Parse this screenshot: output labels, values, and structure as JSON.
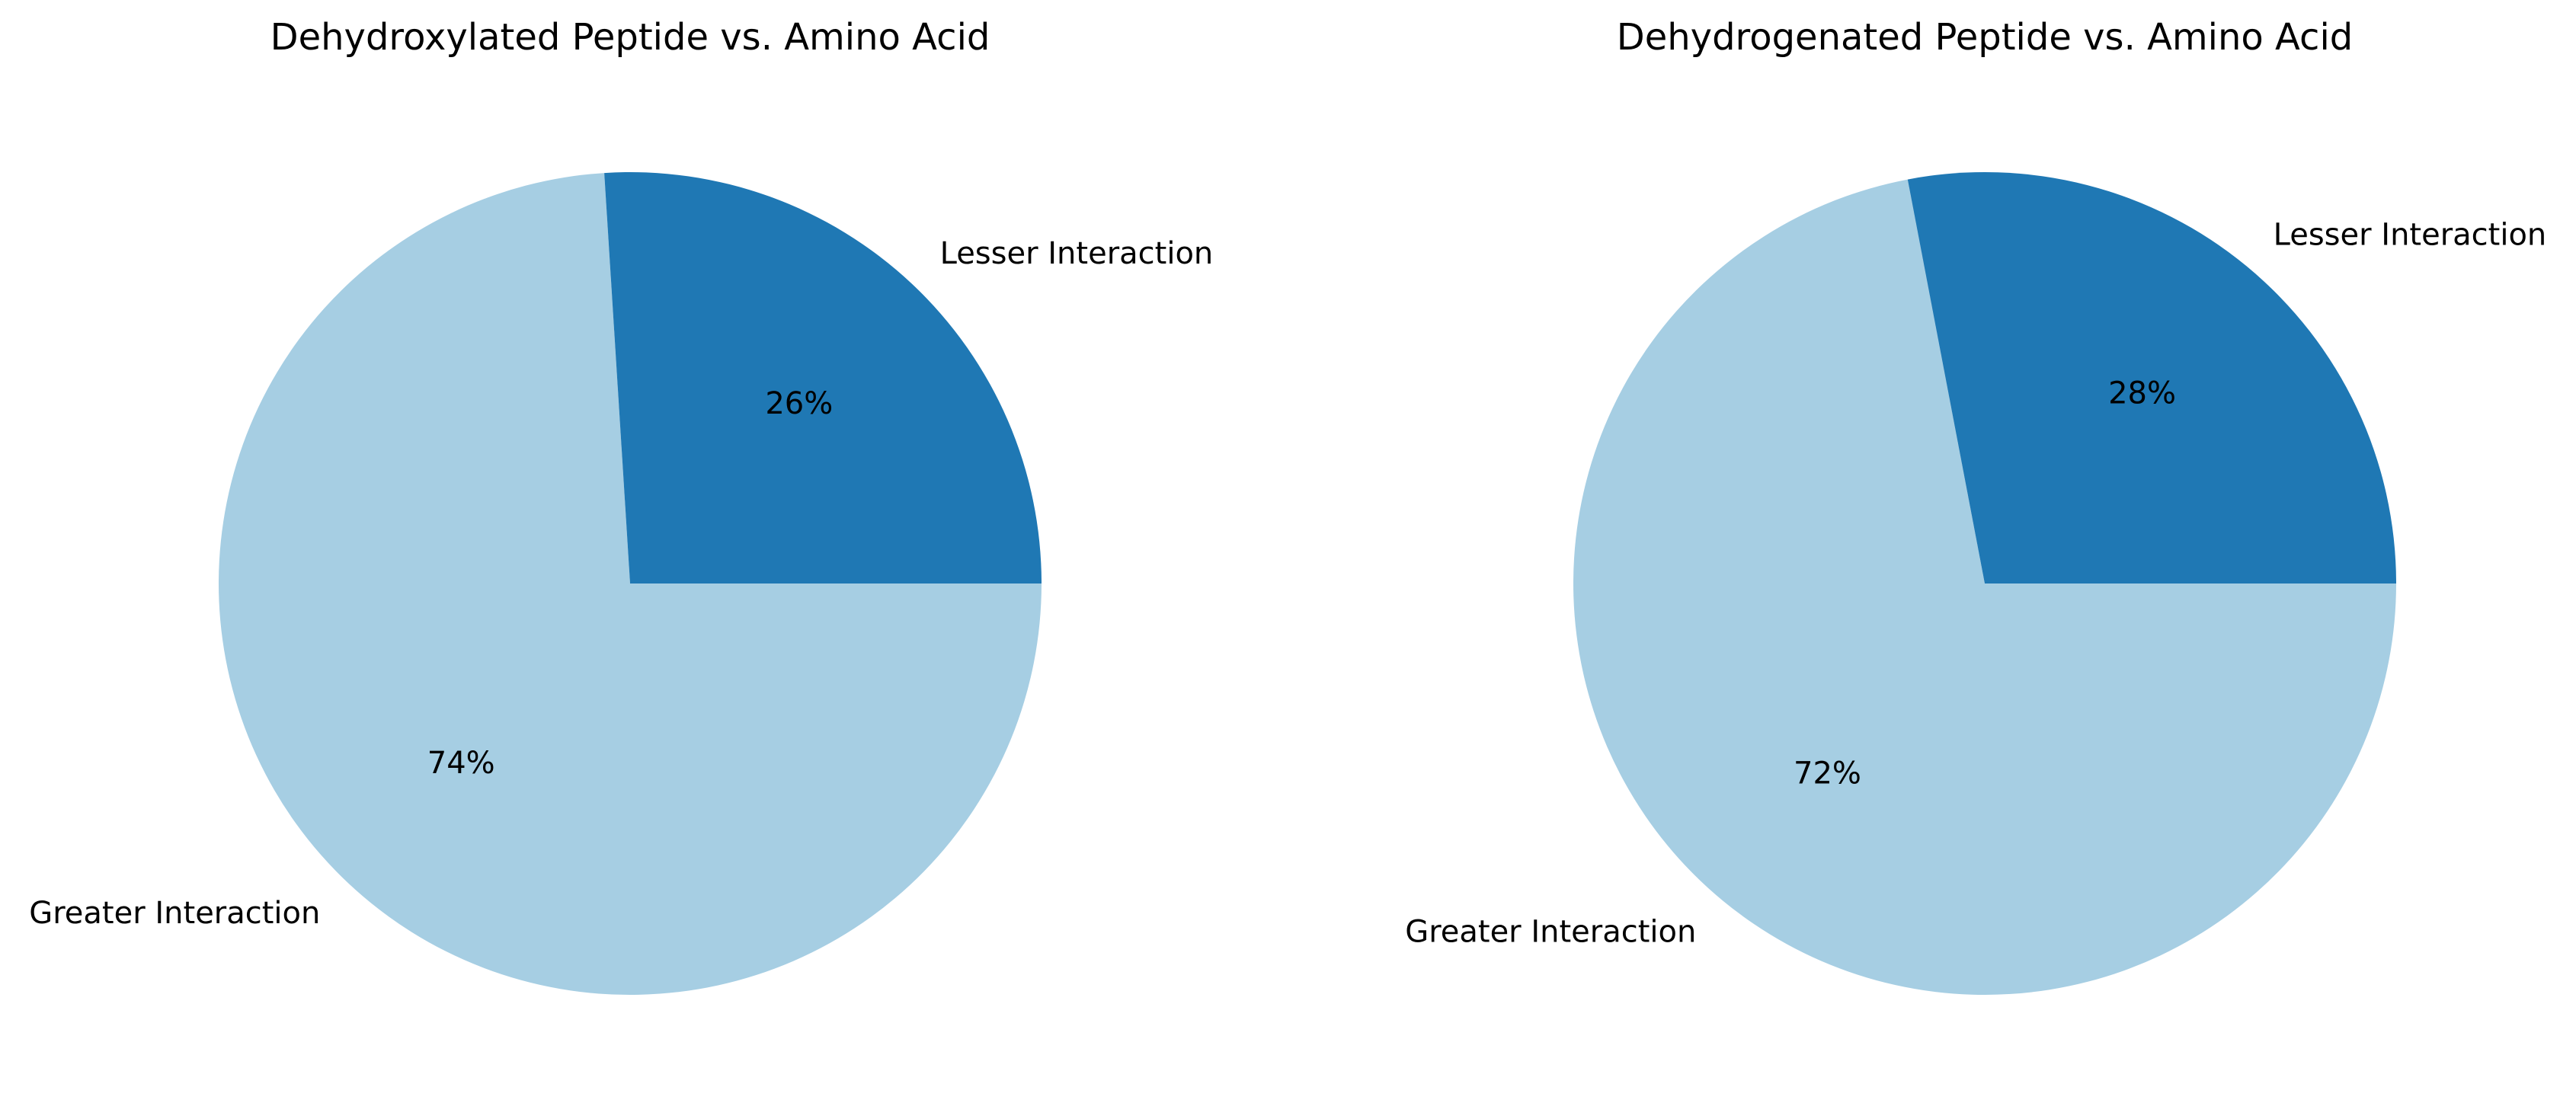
{
  "chart_data": [
    {
      "type": "pie",
      "title": "Dehydroxylated Peptide vs. Amino Acid",
      "categories": [
        "Greater Interaction",
        "Lesser Interaction"
      ],
      "values": [
        74,
        26
      ],
      "pct_labels": [
        "74%",
        "26%"
      ],
      "colors": [
        "#a6cee3",
        "#1f78b4"
      ],
      "start_angle_deg": 0,
      "direction": "clockwise",
      "legend": "none"
    },
    {
      "type": "pie",
      "title": "Dehydrogenated Peptide vs. Amino Acid",
      "categories": [
        "Greater Interaction",
        "Lesser Interaction"
      ],
      "values": [
        72,
        28
      ],
      "pct_labels": [
        "72%",
        "28%"
      ],
      "colors": [
        "#a6cee3",
        "#1f78b4"
      ],
      "start_angle_deg": 0,
      "direction": "clockwise",
      "legend": "none"
    }
  ]
}
